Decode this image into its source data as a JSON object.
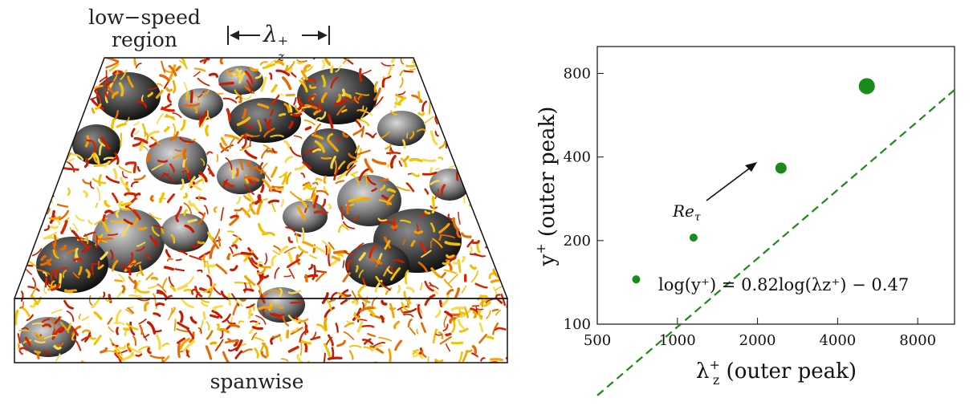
{
  "left_panel": {
    "label_low_speed_line1": "low−speed",
    "label_low_speed_line2": "region",
    "label_lambda": "λ",
    "label_lambda_sub": "z",
    "label_lambda_sup": "+",
    "label_spanwise": "spanwise"
  },
  "chart_data": {
    "type": "scatter",
    "xlabel": "λ_z^+ (outer peak)",
    "ylabel": "y^+ (outer peak)",
    "x_scale": "log",
    "y_scale": "log",
    "xlim": [
      500,
      11000
    ],
    "ylim": [
      100,
      1000
    ],
    "xticks": [
      500,
      1000,
      2000,
      4000,
      8000
    ],
    "yticks": [
      100,
      200,
      400,
      800
    ],
    "series": [
      {
        "color": "#1a8a1a",
        "points": [
          {
            "x": 700,
            "y": 145,
            "size": "small"
          },
          {
            "x": 1150,
            "y": 205,
            "size": "small"
          },
          {
            "x": 2450,
            "y": 365,
            "size": "medium"
          },
          {
            "x": 5150,
            "y": 720,
            "size": "large"
          }
        ]
      }
    ],
    "fit": {
      "equation": "log(y⁺) = 0.82log(λz⁺) − 0.47",
      "slope": 0.82,
      "intercept": -0.47,
      "style": "dashed",
      "color": "#1a8a1a"
    },
    "annotation": {
      "text": "Re",
      "sub": "τ",
      "arrow": "toward increasing Re_τ"
    },
    "grid": false,
    "legend": "none"
  }
}
